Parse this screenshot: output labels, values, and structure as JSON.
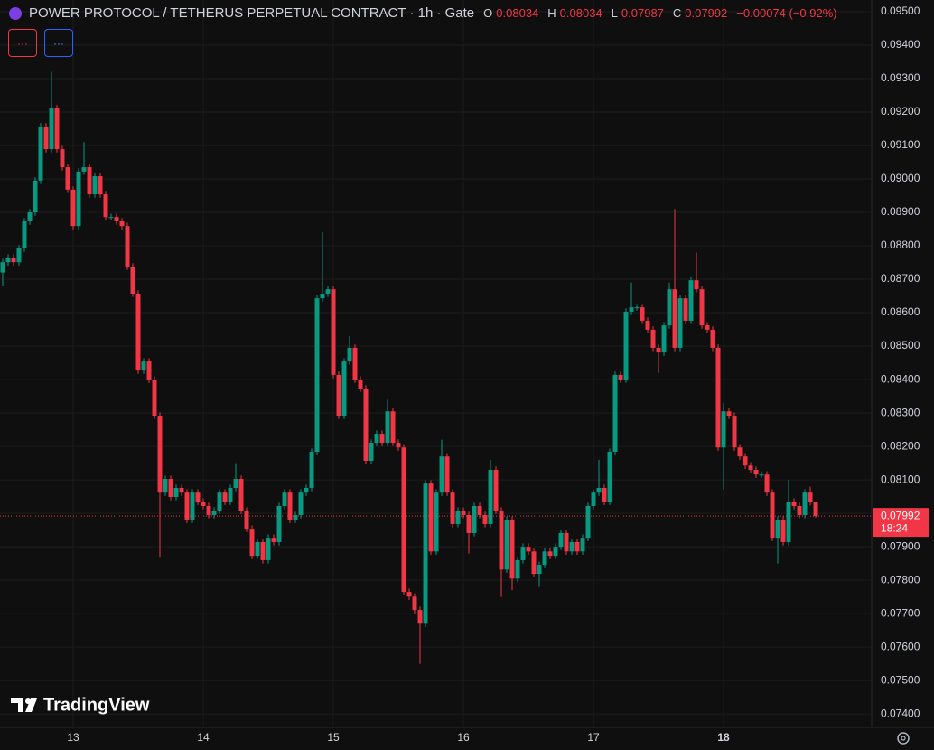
{
  "chart_data": {
    "type": "candlestick",
    "title": "POWER PROTOCOL / TETHERUS PERPETUAL CONTRACT · 1h · Gate",
    "legend_labels": [
      "O",
      "H",
      "L",
      "C"
    ],
    "change": "−0.00074 (−0.92%)",
    "buttons": [
      "···",
      "···"
    ],
    "countdown": "18:24",
    "watermark": "TradingView",
    "up_color": "#089981",
    "down_color": "#f23645",
    "grid": true,
    "xlim": [
      -0.5,
      160.33
    ],
    "xticks": [
      {
        "value": 13,
        "label": "13"
      },
      {
        "value": 37,
        "label": "14"
      },
      {
        "value": 61,
        "label": "15"
      },
      {
        "value": 85,
        "label": "16"
      },
      {
        "value": 109,
        "label": "17"
      },
      {
        "value": 133,
        "label": "18"
      }
    ],
    "ylim": [
      0.0736,
      0.09535
    ],
    "yticks": [
      {
        "value": 0.074,
        "label": "0.07400"
      },
      {
        "value": 0.075,
        "label": "0.07500"
      },
      {
        "value": 0.076,
        "label": "0.07600"
      },
      {
        "value": 0.077,
        "label": "0.07700"
      },
      {
        "value": 0.078,
        "label": "0.07800"
      },
      {
        "value": 0.079,
        "label": "0.07900"
      },
      {
        "value": 0.08,
        "label": "0.08000"
      },
      {
        "value": 0.081,
        "label": "0.08100"
      },
      {
        "value": 0.082,
        "label": "0.08200"
      },
      {
        "value": 0.083,
        "label": "0.08300"
      },
      {
        "value": 0.084,
        "label": "0.08400"
      },
      {
        "value": 0.085,
        "label": "0.08500"
      },
      {
        "value": 0.086,
        "label": "0.08600"
      },
      {
        "value": 0.087,
        "label": "0.08700"
      },
      {
        "value": 0.088,
        "label": "0.08800"
      },
      {
        "value": 0.089,
        "label": "0.08900"
      },
      {
        "value": 0.09,
        "label": "0.09000"
      },
      {
        "value": 0.091,
        "label": "0.09100"
      },
      {
        "value": 0.092,
        "label": "0.09200"
      },
      {
        "value": 0.093,
        "label": "0.09300"
      },
      {
        "value": 0.094,
        "label": "0.09400"
      },
      {
        "value": 0.095,
        "label": "0.09500"
      }
    ],
    "open": [
      0.0872,
      0.08751,
      0.08765,
      0.08751,
      0.08792,
      0.08873,
      0.089,
      0.08995,
      0.09157,
      0.09089,
      0.09211,
      0.09089,
      0.09035,
      0.08968,
      0.08859,
      0.09022,
      0.09035,
      0.08954,
      0.09008,
      0.08954,
      0.08886,
      0.08886,
      0.08873,
      0.08859,
      0.08738,
      0.08657,
      0.08427,
      0.08454,
      0.084,
      0.08292,
      0.08062,
      0.08103,
      0.08049,
      0.08076,
      0.08062,
      0.07981,
      0.08062,
      0.08035,
      0.08022,
      0.07995,
      0.08008,
      0.08062,
      0.08035,
      0.08076,
      0.08103,
      0.08008,
      0.07954,
      0.07873,
      0.07914,
      0.0786,
      0.07927,
      0.07914,
      0.08022,
      0.08062,
      0.07981,
      0.07995,
      0.08062,
      0.08076,
      0.08184,
      0.08643,
      0.08657,
      0.0867,
      0.08414,
      0.08292,
      0.08454,
      0.08495,
      0.084,
      0.08373,
      0.08157,
      0.08211,
      0.08238,
      0.08211,
      0.08305,
      0.08211,
      0.08197,
      0.07765,
      0.07751,
      0.07711,
      0.0767,
      0.08089,
      0.07886,
      0.08062,
      0.0817,
      0.08062,
      0.07968,
      0.08008,
      0.07995,
      0.07941,
      0.08022,
      0.07995,
      0.07968,
      0.0813,
      0.08008,
      0.07832,
      0.07981,
      0.07805,
      0.0786,
      0.079,
      0.07886,
      0.07819,
      0.07846,
      0.07886,
      0.07873,
      0.079,
      0.07941,
      0.07886,
      0.07914,
      0.07886,
      0.07927,
      0.08022,
      0.08062,
      0.08076,
      0.08035,
      0.08184,
      0.08414,
      0.084,
      0.08603,
      0.08616,
      0.08616,
      0.08576,
      0.08549,
      0.08495,
      0.08481,
      0.08562,
      0.0867,
      0.08495,
      0.08643,
      0.08576,
      0.08697,
      0.0867,
      0.08562,
      0.08549,
      0.08495,
      0.08197,
      0.08305,
      0.08292,
      0.08197,
      0.0817,
      0.08143,
      0.0813,
      0.08116,
      0.08116,
      0.08062,
      0.07927,
      0.07981,
      0.07914,
      0.08035,
      0.08022,
      0.07995,
      0.08062,
      0.08034
    ],
    "high": [
      0.08761,
      0.08775,
      0.08775,
      0.08802,
      0.08883,
      0.0891,
      0.09005,
      0.09167,
      0.09167,
      0.0932,
      0.09221,
      0.09099,
      0.09045,
      0.08978,
      0.09032,
      0.0911,
      0.09045,
      0.09018,
      0.09018,
      0.08964,
      0.08896,
      0.08896,
      0.08883,
      0.08869,
      0.08748,
      0.08667,
      0.08464,
      0.08464,
      0.0841,
      0.08302,
      0.08113,
      0.08113,
      0.08086,
      0.08086,
      0.08072,
      0.08072,
      0.08072,
      0.08045,
      0.08032,
      0.08018,
      0.08072,
      0.08072,
      0.08086,
      0.0815,
      0.08113,
      0.08018,
      0.07964,
      0.07924,
      0.07924,
      0.07937,
      0.07937,
      0.08032,
      0.08072,
      0.08072,
      0.08005,
      0.08072,
      0.08086,
      0.08194,
      0.08653,
      0.0884,
      0.0868,
      0.0868,
      0.08424,
      0.08464,
      0.0853,
      0.08505,
      0.0841,
      0.08383,
      0.08221,
      0.08248,
      0.08248,
      0.0834,
      0.08315,
      0.08221,
      0.08207,
      0.07775,
      0.07761,
      0.07721,
      0.08099,
      0.08099,
      0.08072,
      0.0822,
      0.0818,
      0.08072,
      0.08018,
      0.08018,
      0.08005,
      0.08032,
      0.08032,
      0.08005,
      0.0816,
      0.0814,
      0.08018,
      0.07991,
      0.07991,
      0.0787,
      0.0791,
      0.0791,
      0.07896,
      0.07856,
      0.07896,
      0.07896,
      0.0791,
      0.07951,
      0.07951,
      0.07924,
      0.07924,
      0.07937,
      0.08032,
      0.08072,
      0.0816,
      0.08086,
      0.08194,
      0.08424,
      0.08424,
      0.08613,
      0.0869,
      0.08626,
      0.08626,
      0.08586,
      0.08559,
      0.08505,
      0.08572,
      0.0869,
      0.0891,
      0.08653,
      0.08653,
      0.08707,
      0.0878,
      0.0868,
      0.08572,
      0.08559,
      0.08505,
      0.0833,
      0.08315,
      0.08302,
      0.08207,
      0.0818,
      0.08153,
      0.0814,
      0.08126,
      0.08126,
      0.08072,
      0.07991,
      0.07991,
      0.081,
      0.08045,
      0.08032,
      0.08072,
      0.0808,
      0.08034
    ],
    "low": [
      0.0868,
      0.08741,
      0.08741,
      0.08741,
      0.08782,
      0.08863,
      0.0889,
      0.08985,
      0.09079,
      0.09079,
      0.09079,
      0.09025,
      0.08958,
      0.08849,
      0.08849,
      0.09012,
      0.08944,
      0.08944,
      0.08944,
      0.08876,
      0.08876,
      0.08863,
      0.08849,
      0.08728,
      0.08647,
      0.08417,
      0.08417,
      0.0839,
      0.08282,
      0.0787,
      0.08052,
      0.08039,
      0.08039,
      0.08052,
      0.07971,
      0.07971,
      0.08025,
      0.08012,
      0.07985,
      0.07985,
      0.07998,
      0.08025,
      0.08025,
      0.08066,
      0.07998,
      0.07944,
      0.07863,
      0.07863,
      0.0785,
      0.0785,
      0.07904,
      0.07904,
      0.08012,
      0.07971,
      0.07971,
      0.07985,
      0.08052,
      0.08066,
      0.08174,
      0.08633,
      0.08647,
      0.08404,
      0.08282,
      0.08282,
      0.08444,
      0.0839,
      0.08363,
      0.08147,
      0.08147,
      0.08201,
      0.08201,
      0.08201,
      0.08201,
      0.08187,
      0.07755,
      0.07741,
      0.07701,
      0.0755,
      0.0766,
      0.07876,
      0.07876,
      0.08052,
      0.08052,
      0.07958,
      0.07958,
      0.07985,
      0.0788,
      0.07931,
      0.07985,
      0.07958,
      0.07958,
      0.07998,
      0.0775,
      0.07822,
      0.0777,
      0.07795,
      0.0785,
      0.07876,
      0.07809,
      0.0778,
      0.07836,
      0.07863,
      0.07863,
      0.0789,
      0.07876,
      0.07876,
      0.07876,
      0.07876,
      0.07917,
      0.08012,
      0.08052,
      0.08025,
      0.08025,
      0.08174,
      0.0839,
      0.0839,
      0.08593,
      0.08606,
      0.08566,
      0.08539,
      0.08485,
      0.0842,
      0.08471,
      0.08552,
      0.08485,
      0.08485,
      0.08566,
      0.08566,
      0.0866,
      0.08552,
      0.08539,
      0.08485,
      0.08187,
      0.0807,
      0.08282,
      0.08187,
      0.0816,
      0.08133,
      0.0812,
      0.08106,
      0.08106,
      0.08052,
      0.07917,
      0.0785,
      0.07904,
      0.07904,
      0.08012,
      0.07985,
      0.07985,
      0.08024,
      0.07987
    ],
    "close": [
      0.08751,
      0.08765,
      0.08751,
      0.08792,
      0.08873,
      0.089,
      0.08995,
      0.09157,
      0.09089,
      0.09211,
      0.09089,
      0.09035,
      0.08968,
      0.08859,
      0.09022,
      0.09035,
      0.08954,
      0.09008,
      0.08954,
      0.08886,
      0.08886,
      0.08873,
      0.08859,
      0.08738,
      0.08657,
      0.08427,
      0.08454,
      0.084,
      0.08292,
      0.08062,
      0.08103,
      0.08049,
      0.08076,
      0.08062,
      0.07981,
      0.08062,
      0.08035,
      0.08022,
      0.07995,
      0.08008,
      0.08062,
      0.08035,
      0.08076,
      0.08103,
      0.08008,
      0.07954,
      0.07873,
      0.07914,
      0.0786,
      0.07927,
      0.07914,
      0.08022,
      0.08062,
      0.07981,
      0.07995,
      0.08062,
      0.08076,
      0.08184,
      0.08643,
      0.08657,
      0.0867,
      0.08414,
      0.08292,
      0.08454,
      0.08495,
      0.084,
      0.08373,
      0.08157,
      0.08211,
      0.08238,
      0.08211,
      0.08305,
      0.08211,
      0.08197,
      0.07765,
      0.07751,
      0.07711,
      0.0767,
      0.08089,
      0.07886,
      0.08062,
      0.0817,
      0.08062,
      0.07968,
      0.08008,
      0.07995,
      0.07941,
      0.08022,
      0.07995,
      0.07968,
      0.0813,
      0.08008,
      0.07832,
      0.07981,
      0.07805,
      0.0786,
      0.079,
      0.07886,
      0.07819,
      0.07846,
      0.07886,
      0.07873,
      0.079,
      0.07941,
      0.07886,
      0.07914,
      0.07886,
      0.07927,
      0.08022,
      0.08062,
      0.08076,
      0.08035,
      0.08184,
      0.08414,
      0.084,
      0.08603,
      0.08616,
      0.08616,
      0.08576,
      0.08549,
      0.08495,
      0.08481,
      0.08562,
      0.0867,
      0.08495,
      0.08643,
      0.08576,
      0.08697,
      0.0867,
      0.08562,
      0.08549,
      0.08495,
      0.08197,
      0.08305,
      0.08292,
      0.08197,
      0.0817,
      0.08143,
      0.0813,
      0.08116,
      0.08116,
      0.08062,
      0.07927,
      0.07981,
      0.07914,
      0.08035,
      0.08022,
      0.07995,
      0.08062,
      0.08034,
      0.07992
    ]
  }
}
